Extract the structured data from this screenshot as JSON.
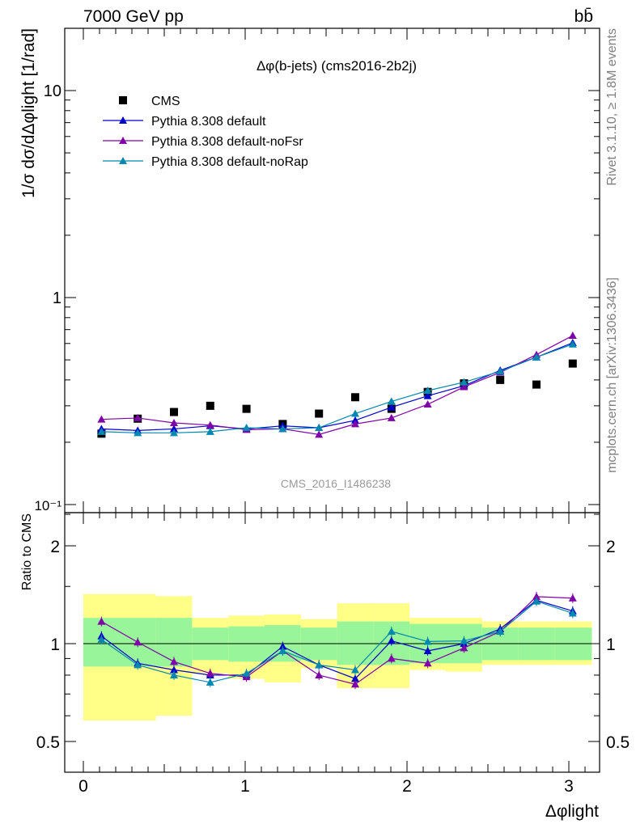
{
  "header": {
    "energy_label": "7000 GeV pp",
    "process_label": "bb̄"
  },
  "side_labels": {
    "rivet": "Rivet 3.1.10, ≥ 1.8M events",
    "mcplots": "mcplots.cern.ch [arXiv:1306.3436]"
  },
  "watermark": "CMS_2016_I1486238",
  "colors": {
    "data": "#000000",
    "default": "#0000cc",
    "noFsr": "#8000a8",
    "noRap": "#0088b0",
    "band_inner": "#99f599",
    "band_outer": "#ffff88"
  },
  "chart_data": [
    {
      "type": "scatter",
      "panel": "main",
      "title": "Δφ(b-jets) (cms2016-2b2j)",
      "ylabel": "1/σ dσ/dΔφlight [1/rad]",
      "xlabel": "Δφlight",
      "y_scale": "log",
      "ylim": [
        0.1,
        20
      ],
      "xlim": [
        -0.1,
        3.2
      ],
      "y_tick_labels": [
        "10⁻¹",
        "1",
        "10"
      ],
      "legend_position": "top-left",
      "x": [
        0.112,
        0.336,
        0.56,
        0.784,
        1.008,
        1.232,
        1.456,
        1.68,
        1.904,
        2.128,
        2.352,
        2.576,
        2.8,
        3.024
      ],
      "series": [
        {
          "name": "CMS",
          "marker": "square",
          "values": [
            0.22,
            0.26,
            0.28,
            0.3,
            0.29,
            0.245,
            0.275,
            0.33,
            0.29,
            0.35,
            0.385,
            0.4,
            0.38,
            0.48
          ]
        },
        {
          "name": "Pythia 8.308 default",
          "marker": "triangle",
          "values": [
            0.232,
            0.228,
            0.232,
            0.24,
            0.232,
            0.24,
            0.235,
            0.255,
            0.295,
            0.335,
            0.375,
            0.445,
            0.515,
            0.605
          ]
        },
        {
          "name": "Pythia 8.308 default-noFsr",
          "marker": "triangle",
          "values": [
            0.258,
            0.262,
            0.248,
            0.242,
            0.23,
            0.232,
            0.218,
            0.245,
            0.262,
            0.305,
            0.37,
            0.435,
            0.53,
            0.655
          ]
        },
        {
          "name": "Pythia 8.308 default-noRap",
          "marker": "triangle",
          "values": [
            0.225,
            0.222,
            0.222,
            0.225,
            0.235,
            0.232,
            0.235,
            0.275,
            0.315,
            0.355,
            0.39,
            0.44,
            0.515,
            0.595
          ]
        }
      ]
    },
    {
      "type": "line",
      "panel": "ratio",
      "ylabel": "Ratio to CMS",
      "xlabel": "Δφlight",
      "ylim": [
        0.4,
        2.5
      ],
      "xlim": [
        -0.1,
        3.2
      ],
      "x_tick_labels": [
        "0",
        "1",
        "2",
        "3"
      ],
      "y_tick_labels": [
        "0.5",
        "1",
        "2"
      ],
      "x": [
        0.112,
        0.336,
        0.56,
        0.784,
        1.008,
        1.232,
        1.456,
        1.68,
        1.904,
        2.128,
        2.352,
        2.576,
        2.8,
        3.024
      ],
      "bins": [
        0,
        0.448,
        0.672,
        0.896,
        1.12,
        1.344,
        1.568,
        1.792,
        2.016,
        2.24,
        2.464,
        2.688,
        2.912,
        3.142
      ],
      "data_bands": {
        "inner": [
          [
            0.85,
            1.2
          ],
          [
            0.85,
            1.2
          ],
          [
            0.89,
            1.12
          ],
          [
            0.88,
            1.13
          ],
          [
            0.88,
            1.14
          ],
          [
            0.89,
            1.12
          ],
          [
            0.86,
            1.17
          ],
          [
            0.86,
            1.17
          ],
          [
            0.87,
            1.15
          ],
          [
            0.87,
            1.15
          ],
          [
            0.89,
            1.12
          ],
          [
            0.89,
            1.12
          ],
          [
            0.89,
            1.12
          ],
          [
            0.89,
            1.12
          ]
        ],
        "outer": [
          [
            0.58,
            1.42
          ],
          [
            0.6,
            1.4
          ],
          [
            0.81,
            1.2
          ],
          [
            0.78,
            1.22
          ],
          [
            0.76,
            1.23
          ],
          [
            0.84,
            1.19
          ],
          [
            0.73,
            1.33
          ],
          [
            0.73,
            1.33
          ],
          [
            0.83,
            1.2
          ],
          [
            0.82,
            1.2
          ],
          [
            0.86,
            1.17
          ],
          [
            0.86,
            1.17
          ],
          [
            0.86,
            1.17
          ],
          [
            0.86,
            1.17
          ]
        ]
      },
      "series": [
        {
          "name": "Pythia 8.308 default",
          "values": [
            1.055,
            0.87,
            0.83,
            0.8,
            0.8,
            0.98,
            0.86,
            0.78,
            1.02,
            0.95,
            1.0,
            1.11,
            1.36,
            1.26
          ]
        },
        {
          "name": "Pythia 8.308 default-noFsr",
          "values": [
            1.17,
            1.01,
            0.88,
            0.81,
            0.79,
            0.95,
            0.8,
            0.75,
            0.9,
            0.87,
            0.97,
            1.09,
            1.395,
            1.38
          ]
        },
        {
          "name": "Pythia 8.308 default-noRap",
          "values": [
            1.03,
            0.86,
            0.8,
            0.76,
            0.81,
            0.95,
            0.86,
            0.83,
            1.09,
            1.015,
            1.02,
            1.09,
            1.35,
            1.24
          ]
        }
      ]
    }
  ]
}
